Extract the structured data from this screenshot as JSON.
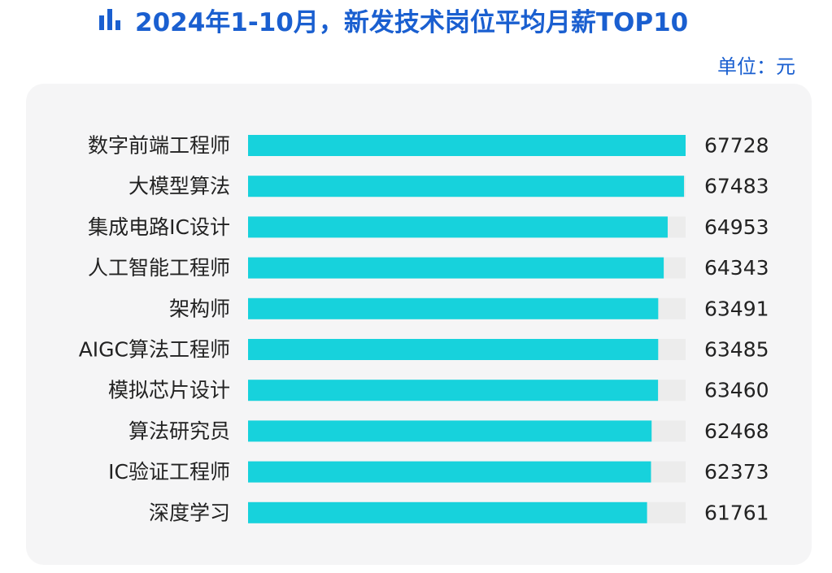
{
  "header": {
    "title": "2024年1-10月，新发技术岗位平均月薪TOP10",
    "unit_label": "单位：元",
    "icon": "bar-chart-icon"
  },
  "colors": {
    "title": "#1a5fd0",
    "bar_fill": "#17d2dc",
    "bar_track": "#ececec",
    "panel_bg": "#f5f5f6",
    "label": "#222222"
  },
  "chart_data": {
    "type": "bar",
    "orientation": "horizontal",
    "title": "2024年1-10月，新发技术岗位平均月薪TOP10",
    "unit": "元",
    "categories": [
      "数字前端工程师",
      "大模型算法",
      "集成电路IC设计",
      "人工智能工程师",
      "架构师",
      "AIGC算法工程师",
      "模拟芯片设计",
      "算法研究员",
      "IC验证工程师",
      "深度学习"
    ],
    "values": [
      67728,
      67483,
      64953,
      64343,
      63491,
      63485,
      63460,
      62468,
      62373,
      61761
    ],
    "xlim": [
      0,
      67728
    ],
    "grid": false,
    "legend": "none",
    "data_labels": true
  }
}
